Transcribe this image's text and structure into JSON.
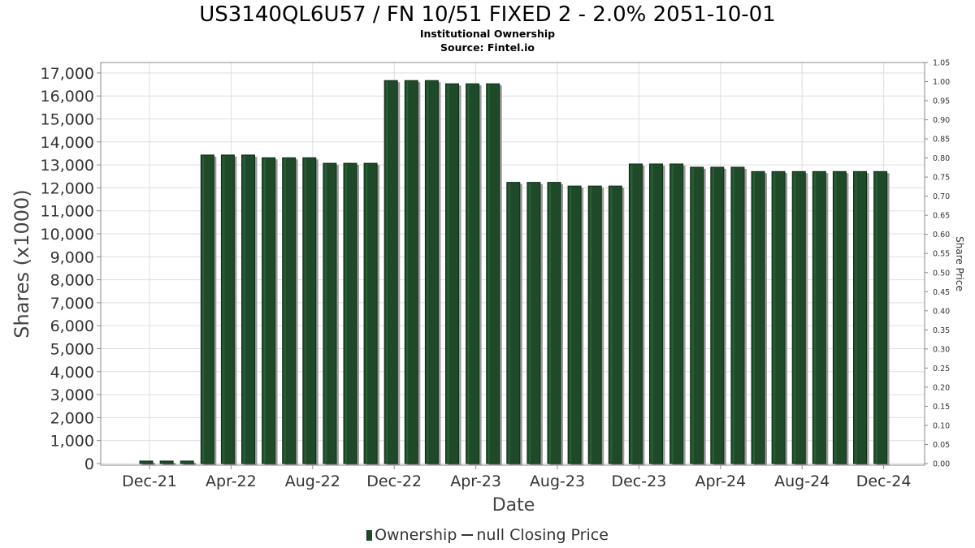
{
  "chart_data": {
    "type": "bar",
    "title": "US3140QL6U57 / FN 10/51 FIXED 2 - 2.0% 2051-10-01",
    "subtitle_lines": [
      "Institutional Ownership",
      "Source: Fintel.io"
    ],
    "xlabel": "Date",
    "ylabel": "Shares (x1000)",
    "y2label": "Share Price",
    "ylim": [
      0,
      17500
    ],
    "y_ticks": [
      0,
      1000,
      2000,
      3000,
      4000,
      5000,
      6000,
      7000,
      8000,
      9000,
      10000,
      11000,
      12000,
      13000,
      14000,
      15000,
      16000,
      17000
    ],
    "y_tick_labels": [
      "0",
      "1,000",
      "2,000",
      "3,000",
      "4,000",
      "5,000",
      "6,000",
      "7,000",
      "8,000",
      "9,000",
      "10,000",
      "11,000",
      "12,000",
      "13,000",
      "14,000",
      "15,000",
      "16,000",
      "17,000"
    ],
    "y2lim": [
      0,
      1.05
    ],
    "y2_tick_labels": [
      "0.00",
      "0.05",
      "0.10",
      "0.15",
      "0.20",
      "0.25",
      "0.30",
      "0.35",
      "0.40",
      "0.45",
      "0.50",
      "0.55",
      "0.60",
      "0.65",
      "0.70",
      "0.75",
      "0.80",
      "0.85",
      "0.90",
      "0.95",
      "1.00",
      "1.05"
    ],
    "x_tick_labels": [
      "Dec-21",
      "Apr-22",
      "Aug-22",
      "Dec-22",
      "Apr-23",
      "Aug-23",
      "Dec-23",
      "Apr-24",
      "Aug-24",
      "Dec-24"
    ],
    "grid": true,
    "legend_position": "bottom",
    "bar_color": "#1f4a2a",
    "series": [
      {
        "name": "Ownership",
        "values": [
          110,
          110,
          110,
          13430,
          13430,
          13430,
          13310,
          13310,
          13310,
          13070,
          13070,
          13070,
          16670,
          16670,
          16670,
          16530,
          16530,
          16530,
          12240,
          12240,
          12240,
          12080,
          12080,
          12080,
          13040,
          13040,
          13040,
          12900,
          12900,
          12900,
          12710,
          12710,
          12710,
          12710,
          12710,
          12710,
          12710
        ]
      },
      {
        "name": "null Closing Price",
        "values": []
      }
    ]
  }
}
